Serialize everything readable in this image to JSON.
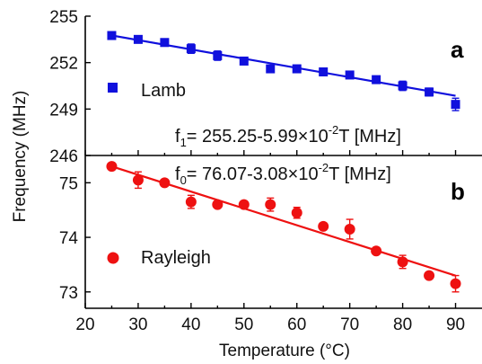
{
  "chart_data": [
    {
      "panel": "a",
      "type": "scatter",
      "ylim": [
        246,
        255
      ],
      "xlim": [
        20,
        95
      ],
      "yticks": [
        246,
        249,
        252,
        255
      ],
      "ylabel": "Frequency (MHz)",
      "xlabel": "Temperature (°C)",
      "series": [
        {
          "name": "Lamb",
          "marker": "square",
          "color": "#1010dd",
          "x": [
            25,
            30,
            35,
            40,
            45,
            50,
            55,
            60,
            65,
            70,
            75,
            80,
            85,
            90
          ],
          "y": [
            253.75,
            253.5,
            253.3,
            252.9,
            252.45,
            252.1,
            251.6,
            251.6,
            251.4,
            251.2,
            250.9,
            250.5,
            250.1,
            249.3
          ],
          "yerr": [
            0.2,
            0.2,
            0.2,
            0.3,
            0.3,
            0.2,
            0.2,
            0.2,
            0.25,
            0.2,
            0.2,
            0.3,
            0.25,
            0.4
          ]
        }
      ],
      "fit": {
        "slope": -0.0599,
        "intercept": 255.25,
        "x_range": [
          25,
          90
        ]
      },
      "equation": {
        "prefix": "f",
        "subscript": "1",
        "body": "= 255.25-5.99×10",
        "exponent": "-2",
        "suffix": "T [MHz]"
      }
    },
    {
      "panel": "b",
      "type": "scatter",
      "ylim": [
        72.7,
        75.5
      ],
      "xlim": [
        20,
        95
      ],
      "yticks": [
        73,
        74,
        75
      ],
      "xticks": [
        20,
        30,
        40,
        50,
        60,
        70,
        80,
        90
      ],
      "series": [
        {
          "name": "Rayleigh",
          "marker": "circle",
          "color": "#ee1111",
          "x": [
            25,
            30,
            35,
            40,
            45,
            50,
            55,
            60,
            65,
            70,
            75,
            80,
            85,
            90
          ],
          "y": [
            75.3,
            75.05,
            75.0,
            74.65,
            74.6,
            74.6,
            74.6,
            74.45,
            74.2,
            74.15,
            73.75,
            73.55,
            73.3,
            73.15
          ],
          "yerr": [
            0.05,
            0.15,
            0.05,
            0.12,
            0.05,
            0.05,
            0.12,
            0.1,
            0.05,
            0.18,
            0.05,
            0.12,
            0.05,
            0.15
          ]
        }
      ],
      "fit": {
        "slope": -0.0308,
        "intercept": 76.07,
        "x_range": [
          25,
          90
        ]
      },
      "equation": {
        "prefix": "f",
        "subscript": "0",
        "body": "= 76.07-3.08×10",
        "exponent": "-2",
        "suffix": "T [MHz]"
      }
    }
  ],
  "labels": {
    "panel_a": "a",
    "panel_b": "b",
    "legend_a": "Lamb",
    "legend_b": "Rayleigh",
    "ylabel": "Frequency (MHz)",
    "xlabel": "Temperature (°C)"
  }
}
